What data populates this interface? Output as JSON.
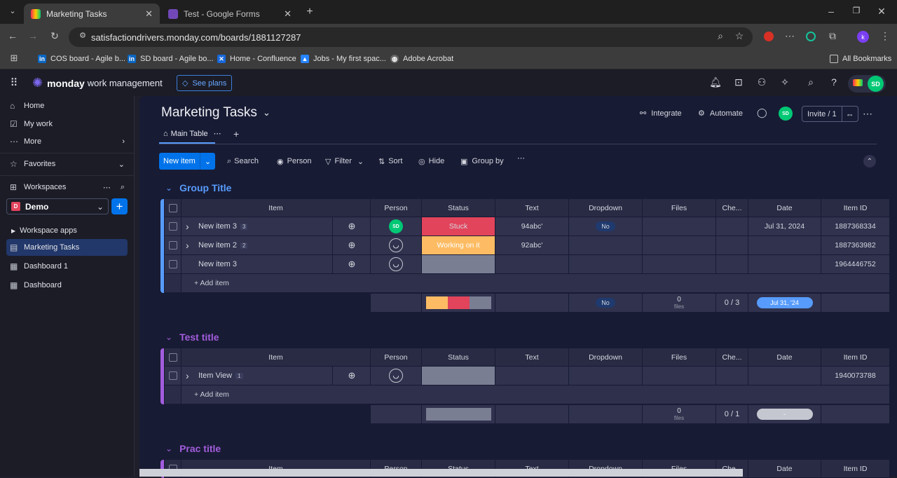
{
  "browser": {
    "tabs": [
      {
        "title": "Marketing Tasks",
        "active": true
      },
      {
        "title": "Test - Google Forms",
        "active": false
      }
    ],
    "url": "satisfactiondrivers.monday.com/boards/1881127287",
    "bookmarks": [
      "COS board - Agile b...",
      "SD board - Agile bo...",
      "Home - Confluence",
      "Jobs - My first spac...",
      "Adobe Acrobat"
    ],
    "all_bookmarks": "All Bookmarks",
    "profile_initial": "k"
  },
  "app": {
    "brand": "monday",
    "product": "work management",
    "see_plans": "See plans",
    "user_initials": "SD"
  },
  "sidebar": {
    "home": "Home",
    "my_work": "My work",
    "more": "More",
    "favorites": "Favorites",
    "workspaces": "Workspaces",
    "workspace_name": "Demo",
    "workspace_initial": "D",
    "items": [
      {
        "label": "Workspace apps"
      },
      {
        "label": "Marketing Tasks",
        "selected": true
      },
      {
        "label": "Dashboard 1"
      },
      {
        "label": "Dashboard"
      }
    ]
  },
  "board": {
    "title": "Marketing Tasks",
    "integrate": "Integrate",
    "automate": "Automate",
    "invite": "Invite / 1",
    "view_tab": "Main Table",
    "toolbar": {
      "new_item": "New item",
      "search": "Search",
      "person": "Person",
      "filter": "Filter",
      "sort": "Sort",
      "hide": "Hide",
      "group_by": "Group by"
    },
    "columns": [
      "Item",
      "Person",
      "Status",
      "Text",
      "Dropdown",
      "Files",
      "Che...",
      "Date",
      "Item ID"
    ],
    "add_item": "+ Add item",
    "groups": [
      {
        "title": "Group Title",
        "color": "#579bfc",
        "rows": [
          {
            "name": "New item 3",
            "subitems": "3",
            "person": "SD",
            "status": "Stuck",
            "text": "94abc'",
            "dropdown": "No",
            "date": "Jul 31, 2024",
            "id": "1887368334"
          },
          {
            "name": "New item 2",
            "subitems": "2",
            "person": "",
            "status": "Working on it",
            "text": "92abc'",
            "dropdown": "",
            "date": "",
            "id": "1887363982"
          },
          {
            "name": "New item 3",
            "subitems": "",
            "person": "",
            "status": "",
            "text": "",
            "dropdown": "",
            "date": "",
            "id": "1964446752"
          }
        ],
        "summary": {
          "dropdown": "No",
          "files": "0",
          "files_label": "files",
          "checks": "0 / 3",
          "date": "Jul 31, '24"
        }
      },
      {
        "title": "Test title",
        "color": "#a25ddc",
        "rows": [
          {
            "name": "Item View",
            "subitems": "1",
            "person": "",
            "status": "",
            "text": "",
            "dropdown": "",
            "date": "",
            "id": "1940073788"
          }
        ],
        "summary": {
          "dropdown": "",
          "files": "0",
          "files_label": "files",
          "checks": "0 / 1",
          "date": "-"
        }
      },
      {
        "title": "Prac title",
        "color": "#a25ddc"
      }
    ]
  },
  "colors": {
    "stuck": "#df2f4a",
    "working": "#fdab3d",
    "empty": "#797e93",
    "accent": "#0073ea"
  }
}
